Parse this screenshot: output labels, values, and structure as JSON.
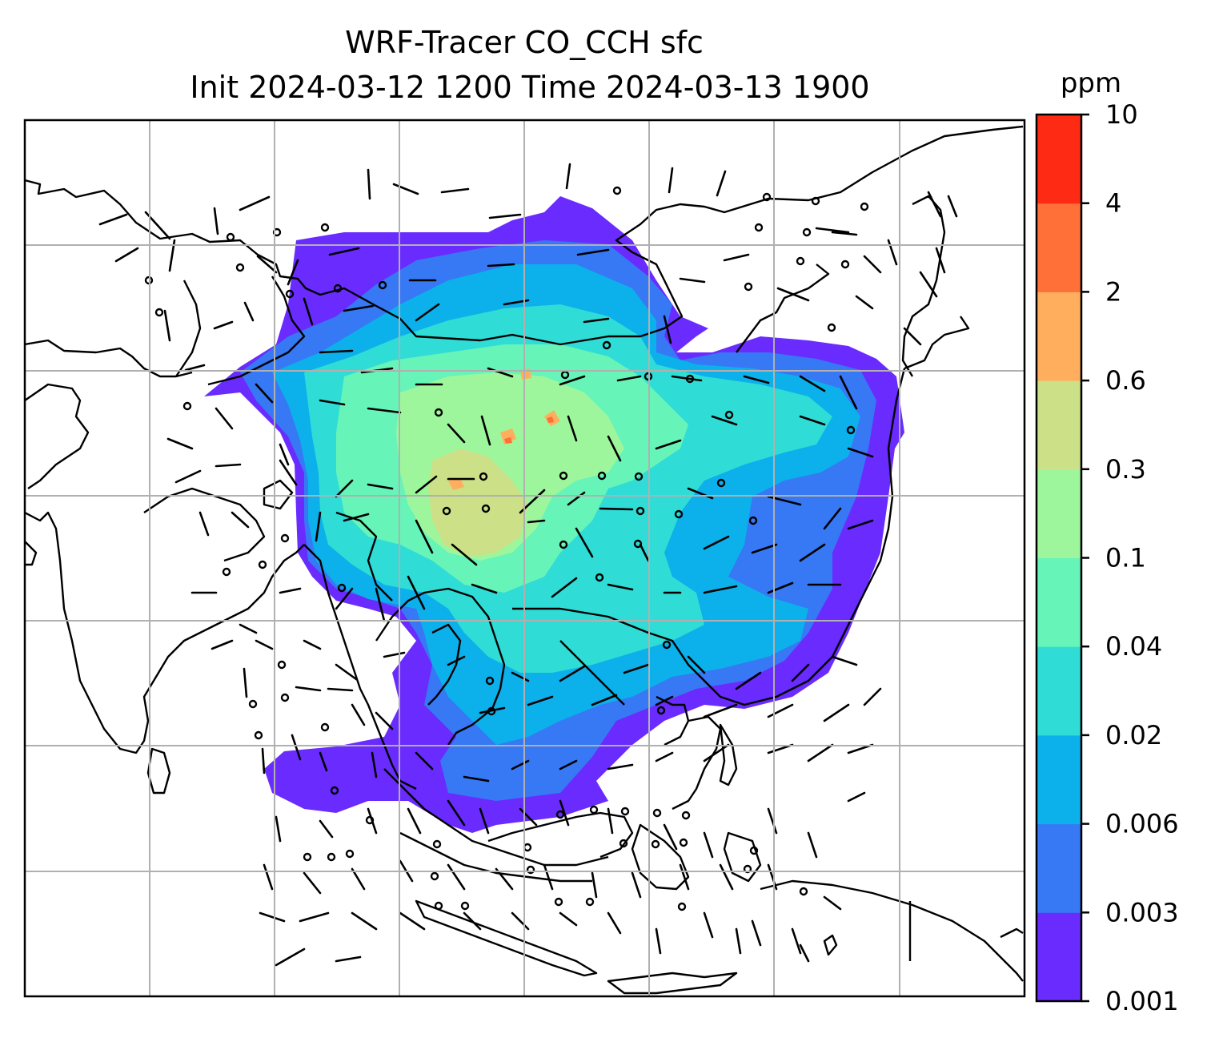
{
  "chart_data": {
    "type": "heatmap",
    "title_line1": "WRF-Tracer CO_CCH sfc",
    "title_line2": "Init 2024-03-12 1200 Time 2024-03-13 1900",
    "colorbar": {
      "unit": "ppm",
      "levels": [
        "0.001",
        "0.003",
        "0.006",
        "0.02",
        "0.04",
        "0.1",
        "0.3",
        "0.6",
        "2",
        "4",
        "10"
      ],
      "colors": [
        "#6a2bff",
        "#3778f5",
        "#0cb0ea",
        "#2fdcd6",
        "#66f4b8",
        "#9ef69c",
        "#cce087",
        "#ffae5e",
        "#ff7039",
        "#ff2a14"
      ]
    },
    "grid": true,
    "overlays": [
      "coastlines",
      "country borders",
      "wind barbs"
    ]
  }
}
